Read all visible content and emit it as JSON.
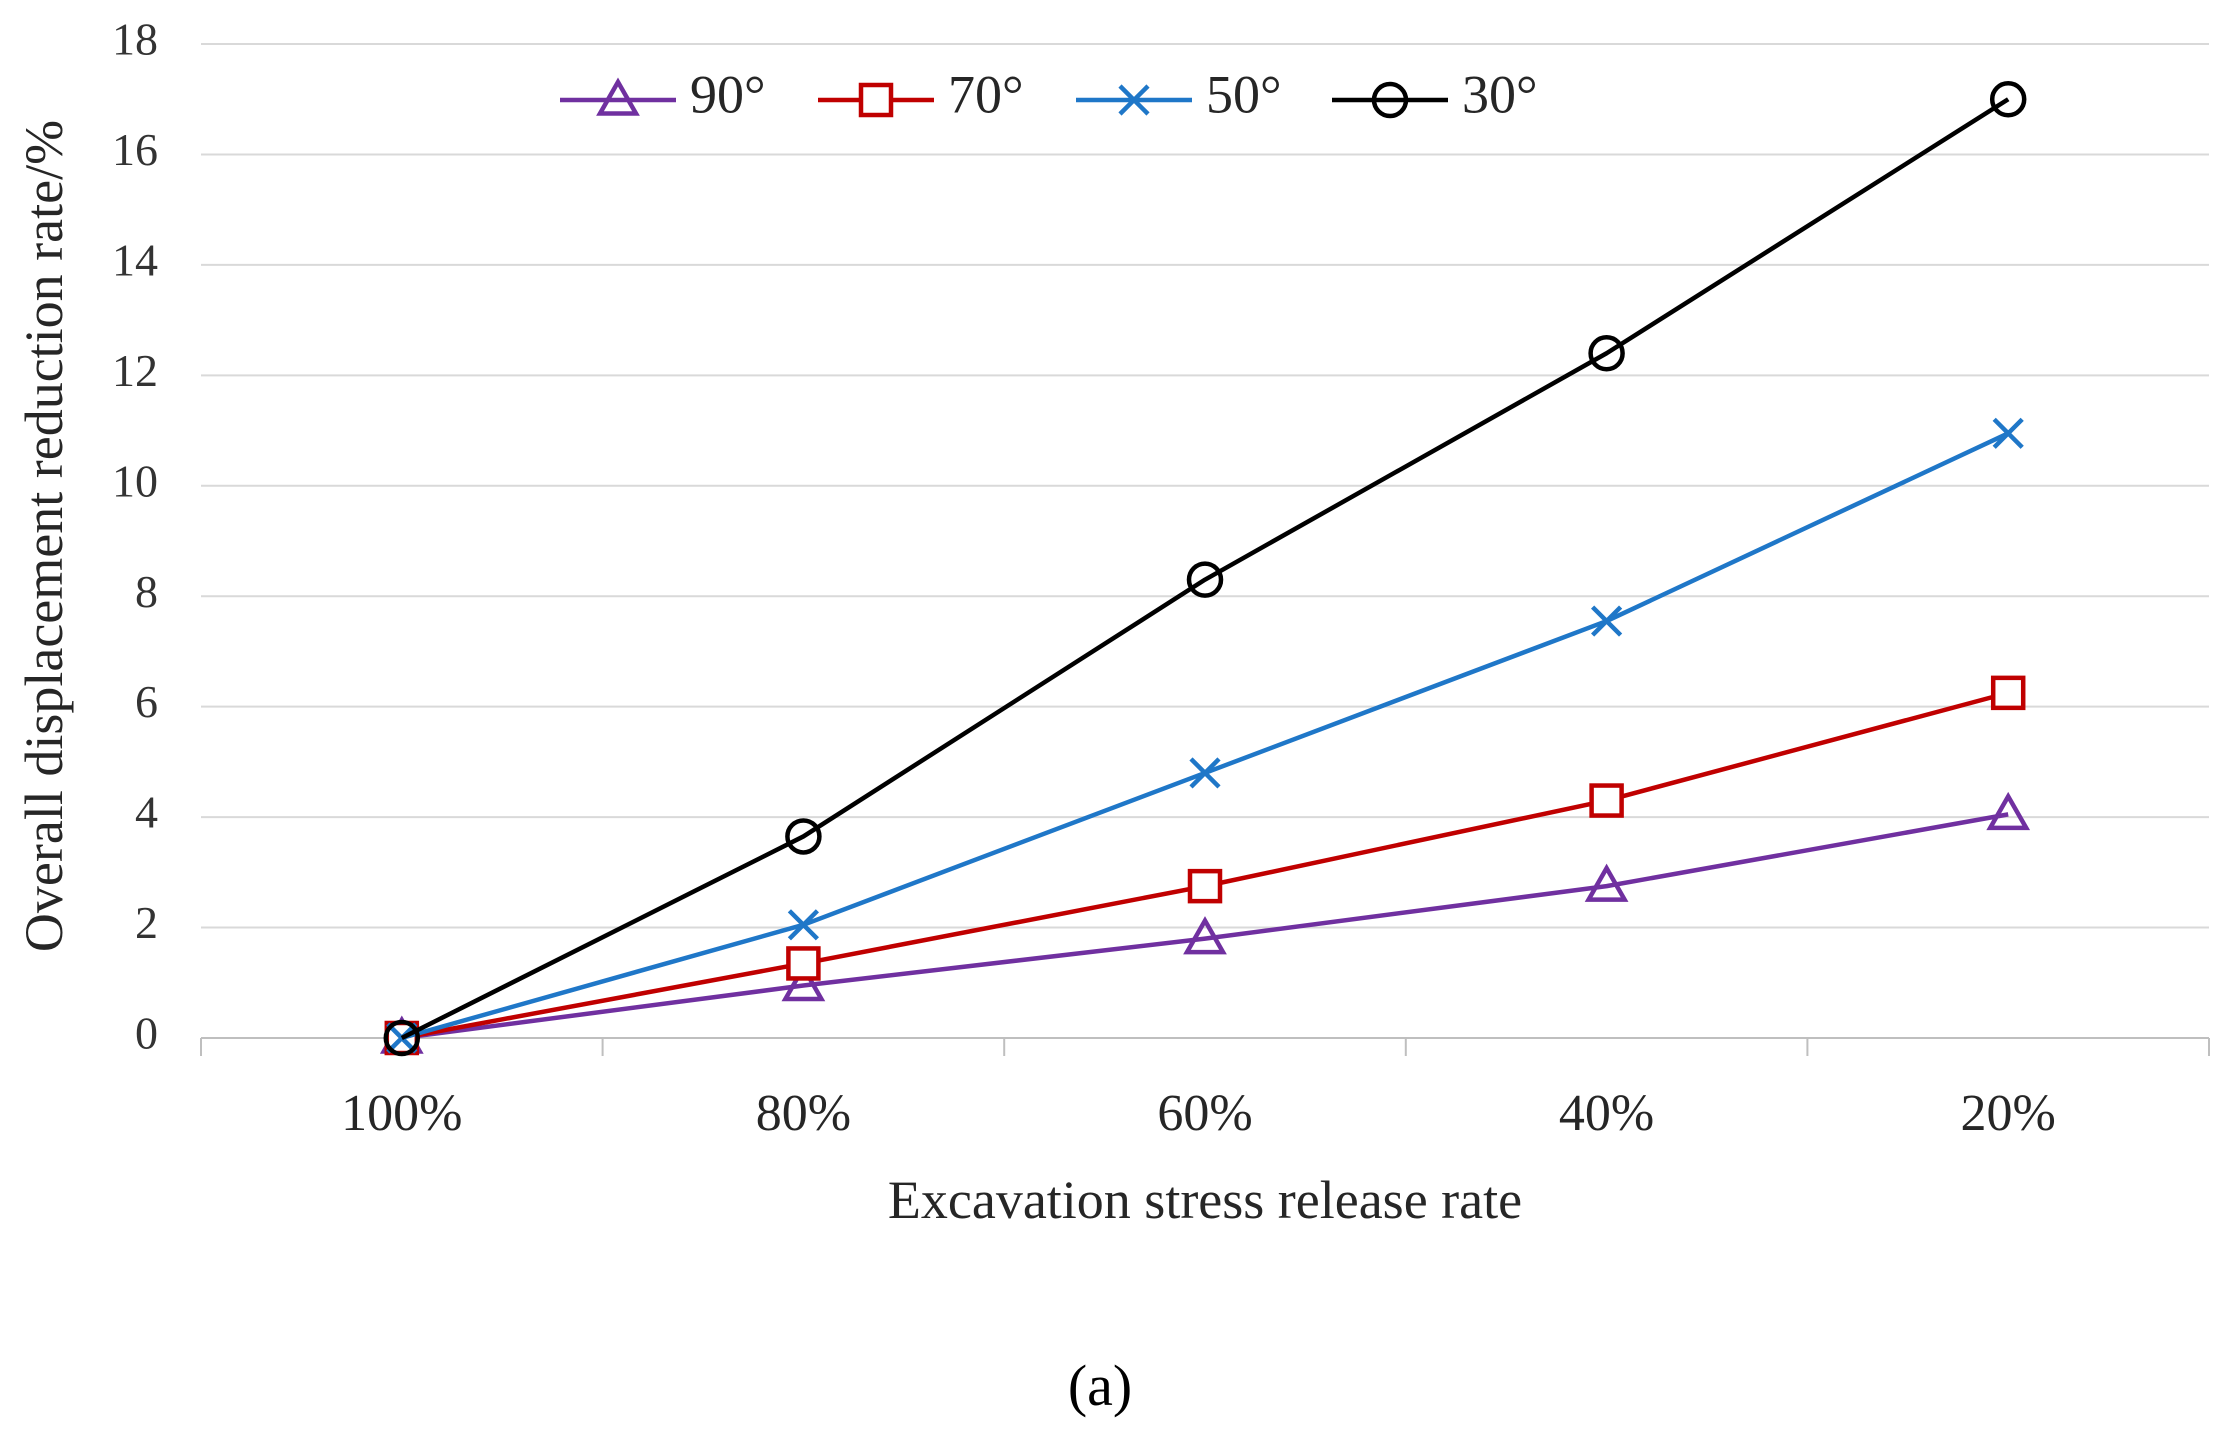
{
  "chart_data": {
    "type": "line",
    "title": "",
    "xlabel": "Excavation stress release rate",
    "ylabel": "Overall displacement  reduction rate/%",
    "categories": [
      "100%",
      "80%",
      "60%",
      "40%",
      "20%"
    ],
    "ylim": [
      0,
      18
    ],
    "yticks": [
      0,
      2,
      4,
      6,
      8,
      10,
      12,
      14,
      16,
      18
    ],
    "grid": "horizontal",
    "legend_position": "top",
    "series": [
      {
        "name": "90°",
        "color": "#7030A0",
        "marker": "triangle",
        "values": [
          0,
          0.95,
          1.8,
          2.75,
          4.05
        ]
      },
      {
        "name": "70°",
        "color": "#C00000",
        "marker": "square",
        "values": [
          0,
          1.35,
          2.75,
          4.3,
          6.25
        ]
      },
      {
        "name": "50°",
        "color": "#1F77C8",
        "marker": "x",
        "values": [
          0,
          2.05,
          4.8,
          7.55,
          10.95
        ]
      },
      {
        "name": "30°",
        "color": "#000000",
        "marker": "circle",
        "values": [
          0,
          3.65,
          8.3,
          12.4,
          17.0
        ]
      }
    ]
  },
  "caption": "(a)"
}
